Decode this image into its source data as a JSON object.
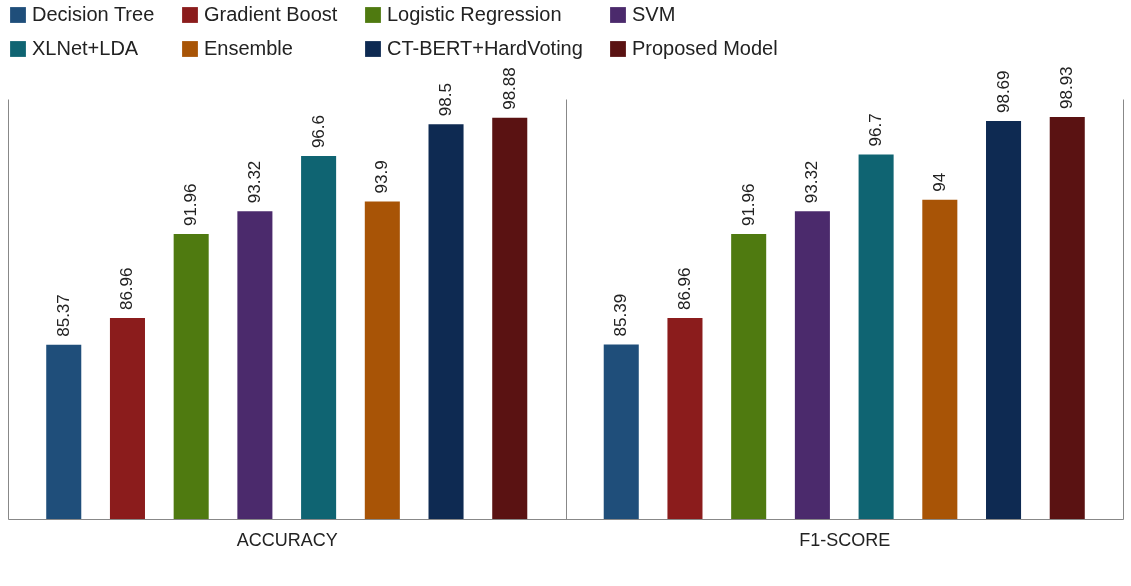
{
  "chart_data": {
    "type": "bar",
    "categories": [
      "ACCURACY",
      "F1-SCORE"
    ],
    "ylim": [
      75,
      100
    ],
    "data_labels": true,
    "legend": "top",
    "series": [
      {
        "name": "Decision Tree",
        "color": "#1f4e7a",
        "values": [
          85.37,
          85.39
        ]
      },
      {
        "name": "Gradient Boost",
        "color": "#8b1c1c",
        "values": [
          86.96,
          86.96
        ]
      },
      {
        "name": "Logistic Regression",
        "color": "#4f7a10",
        "values": [
          91.96,
          91.96
        ]
      },
      {
        "name": "SVM",
        "color": "#4b2a6c",
        "values": [
          93.32,
          93.32
        ]
      },
      {
        "name": "XLNet+LDA",
        "color": "#0f6472",
        "values": [
          96.6,
          96.7
        ]
      },
      {
        "name": "Ensemble",
        "color": "#a85406",
        "values": [
          93.9,
          94
        ]
      },
      {
        "name": "CT-BERT+HardVoting",
        "color": "#0e2a52",
        "values": [
          98.5,
          98.69
        ]
      },
      {
        "name": "Proposed Model",
        "color": "#5a1212",
        "values": [
          98.88,
          98.93
        ]
      }
    ]
  }
}
